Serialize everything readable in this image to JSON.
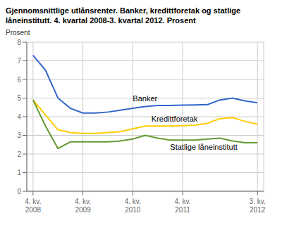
{
  "chart_data": {
    "type": "line",
    "title": "Gjennomsnittlige utlånsrenter. Banker, kredittforetak og statlige\nlåneinstitutt. 4. kvartal 2008-3. kvartal 2012. Prosent",
    "y_label": "Prosent",
    "categories": [
      "4. kv.\n2008",
      null,
      null,
      null,
      "4. kv.\n2009",
      null,
      null,
      null,
      "4. kv.\n2010",
      null,
      null,
      null,
      "4. kv.\n2011",
      null,
      null,
      null,
      null,
      null,
      "3. kv.\n2012"
    ],
    "series": [
      {
        "name": "Banker",
        "color": "#3366CC",
        "values": [
          7.3,
          6.5,
          5.0,
          4.45,
          4.2,
          4.2,
          4.25,
          4.35,
          4.45,
          4.55,
          4.6,
          4.6,
          4.62,
          4.63,
          4.65,
          4.9,
          5.0,
          4.85,
          4.75
        ]
      },
      {
        "name": "Kredittforetak",
        "color": "#FFCC00",
        "values": [
          4.9,
          4.1,
          3.3,
          3.15,
          3.1,
          3.1,
          3.15,
          3.2,
          3.35,
          3.5,
          3.5,
          3.5,
          3.52,
          3.55,
          3.65,
          3.9,
          3.95,
          3.75,
          3.6
        ]
      },
      {
        "name": "Statlige låneinstitutt",
        "color": "#669933",
        "values": [
          4.9,
          3.5,
          2.3,
          2.65,
          2.65,
          2.65,
          2.65,
          2.7,
          2.8,
          3.0,
          2.85,
          2.75,
          2.75,
          2.75,
          2.8,
          2.85,
          2.7,
          2.6,
          2.6
        ]
      }
    ],
    "annotations": [
      {
        "text": "Banker",
        "x": 8,
        "y": 4.82
      },
      {
        "text": "Kredittforetak",
        "x": 9.5,
        "y": 3.72
      },
      {
        "text": "Statlige låneinstitutt",
        "x": 11,
        "y": 2.22
      }
    ],
    "ylim": [
      0,
      8
    ],
    "yticks": [
      0,
      1,
      2,
      3,
      4,
      5,
      6,
      7,
      8
    ],
    "grid": true
  }
}
